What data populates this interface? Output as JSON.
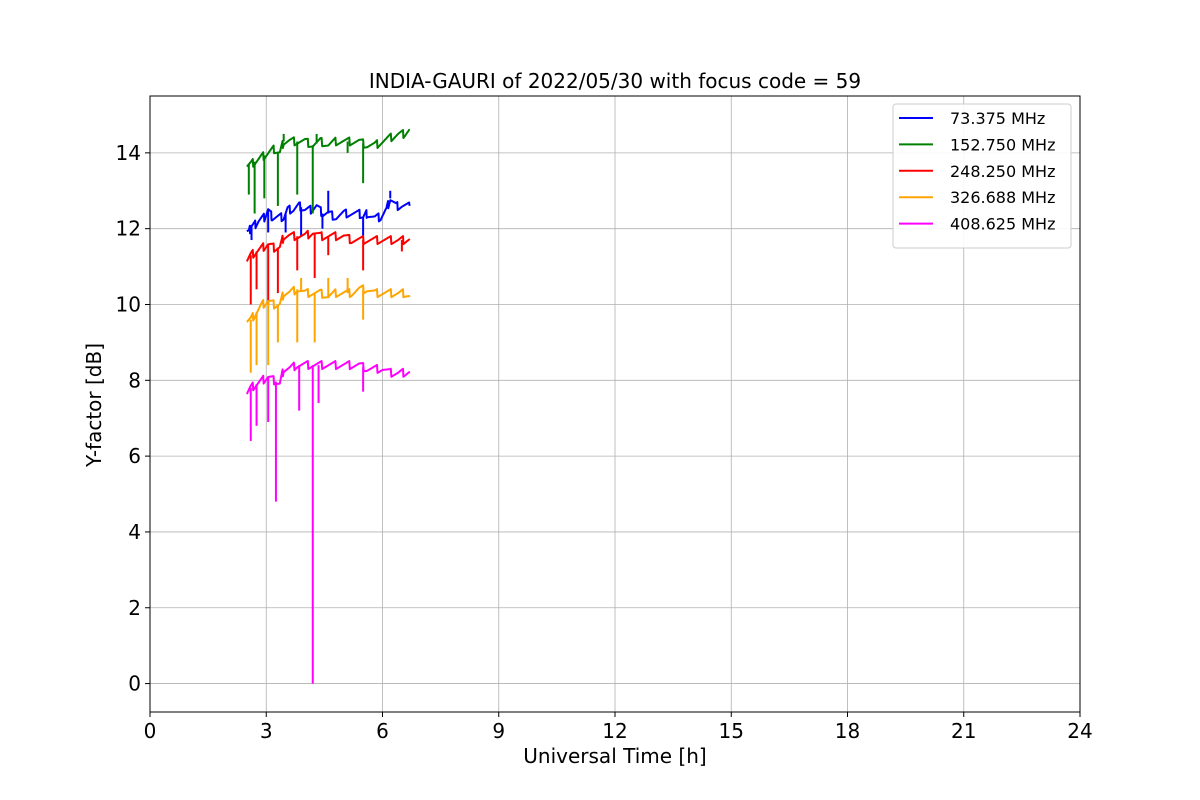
{
  "chart_data": {
    "type": "line",
    "title": "INDIA-GAURI of 2022/05/30 with focus code = 59",
    "xlabel": "Universal Time [h]",
    "ylabel": "Y-factor [dB]",
    "xlim": [
      0,
      24
    ],
    "ylim": [
      -0.75,
      15.5
    ],
    "x_ticks": [
      0,
      3,
      6,
      9,
      12,
      15,
      18,
      21,
      24
    ],
    "x_tick_labels": [
      "0",
      "3",
      "6",
      "9",
      "12",
      "15",
      "18",
      "21",
      "24"
    ],
    "y_ticks": [
      0,
      2,
      4,
      6,
      8,
      10,
      12,
      14
    ],
    "y_tick_labels": [
      "0",
      "2",
      "4",
      "6",
      "8",
      "10",
      "12",
      "14"
    ],
    "grid": true,
    "legend_position": "top-right",
    "series": [
      {
        "name": "  73.375 MHz",
        "color": "#0000ff",
        "points": [
          [
            2.5,
            12.0
          ],
          [
            2.55,
            11.9
          ],
          [
            2.62,
            12.1
          ],
          [
            2.7,
            12.1
          ],
          [
            2.8,
            12.2
          ],
          [
            2.95,
            12.3
          ],
          [
            3.05,
            12.5
          ],
          [
            3.15,
            12.3
          ],
          [
            3.3,
            12.3
          ],
          [
            3.45,
            12.3
          ],
          [
            3.55,
            12.5
          ],
          [
            3.7,
            12.5
          ],
          [
            3.85,
            12.6
          ],
          [
            4.0,
            12.5
          ],
          [
            4.15,
            12.5
          ],
          [
            4.3,
            12.6
          ],
          [
            4.45,
            12.4
          ],
          [
            4.6,
            12.4
          ],
          [
            4.8,
            12.3
          ],
          [
            5.0,
            12.4
          ],
          [
            5.2,
            12.4
          ],
          [
            5.4,
            12.4
          ],
          [
            5.5,
            12.3
          ],
          [
            5.6,
            12.4
          ],
          [
            5.8,
            12.3
          ],
          [
            5.95,
            12.3
          ],
          [
            6.1,
            12.5
          ],
          [
            6.2,
            12.8
          ],
          [
            6.35,
            12.6
          ],
          [
            6.5,
            12.6
          ],
          [
            6.7,
            12.6
          ]
        ],
        "dips": [
          [
            2.62,
            11.7
          ],
          [
            3.05,
            11.9
          ],
          [
            3.5,
            11.9
          ],
          [
            3.9,
            11.8
          ],
          [
            4.45,
            12.0
          ],
          [
            4.6,
            13.0
          ],
          [
            5.5,
            11.8
          ],
          [
            6.2,
            13.0
          ]
        ]
      },
      {
        "name": "152.750 MHz",
        "color": "#008000",
        "points": [
          [
            2.5,
            13.7
          ],
          [
            2.6,
            13.7
          ],
          [
            2.75,
            13.8
          ],
          [
            2.9,
            13.9
          ],
          [
            3.05,
            14.0
          ],
          [
            3.2,
            14.1
          ],
          [
            3.35,
            14.0
          ],
          [
            3.45,
            14.3
          ],
          [
            3.6,
            14.3
          ],
          [
            3.8,
            14.3
          ],
          [
            4.0,
            14.3
          ],
          [
            4.2,
            14.2
          ],
          [
            4.4,
            14.3
          ],
          [
            4.6,
            14.2
          ],
          [
            4.8,
            14.3
          ],
          [
            5.0,
            14.3
          ],
          [
            5.2,
            14.3
          ],
          [
            5.4,
            14.3
          ],
          [
            5.6,
            14.2
          ],
          [
            5.8,
            14.2
          ],
          [
            6.0,
            14.3
          ],
          [
            6.2,
            14.4
          ],
          [
            6.4,
            14.5
          ],
          [
            6.55,
            14.5
          ],
          [
            6.7,
            14.6
          ]
        ],
        "dips": [
          [
            2.55,
            12.9
          ],
          [
            2.7,
            12.4
          ],
          [
            2.95,
            12.8
          ],
          [
            3.3,
            12.6
          ],
          [
            3.45,
            14.5
          ],
          [
            3.8,
            12.9
          ],
          [
            4.2,
            12.4
          ],
          [
            4.3,
            14.5
          ],
          [
            5.1,
            14.0
          ],
          [
            5.5,
            13.2
          ]
        ]
      },
      {
        "name": "248.250 MHz",
        "color": "#ff0000",
        "points": [
          [
            2.5,
            11.2
          ],
          [
            2.6,
            11.3
          ],
          [
            2.75,
            11.4
          ],
          [
            2.9,
            11.5
          ],
          [
            3.05,
            11.6
          ],
          [
            3.2,
            11.5
          ],
          [
            3.35,
            11.5
          ],
          [
            3.45,
            11.8
          ],
          [
            3.6,
            11.8
          ],
          [
            3.8,
            11.8
          ],
          [
            4.0,
            11.8
          ],
          [
            4.2,
            11.9
          ],
          [
            4.4,
            11.8
          ],
          [
            4.6,
            11.8
          ],
          [
            4.8,
            11.8
          ],
          [
            5.0,
            11.8
          ],
          [
            5.2,
            11.7
          ],
          [
            5.4,
            11.7
          ],
          [
            5.6,
            11.7
          ],
          [
            5.8,
            11.7
          ],
          [
            6.0,
            11.7
          ],
          [
            6.2,
            11.7
          ],
          [
            6.4,
            11.7
          ],
          [
            6.55,
            11.7
          ],
          [
            6.7,
            11.7
          ]
        ],
        "dips": [
          [
            2.6,
            10.0
          ],
          [
            2.75,
            10.4
          ],
          [
            3.05,
            10.0
          ],
          [
            3.3,
            10.3
          ],
          [
            3.8,
            10.9
          ],
          [
            4.25,
            10.7
          ],
          [
            4.6,
            11.3
          ],
          [
            5.5,
            10.9
          ],
          [
            6.5,
            11.4
          ]
        ]
      },
      {
        "name": "326.688 MHz",
        "color": "#ffa500",
        "points": [
          [
            2.5,
            9.6
          ],
          [
            2.6,
            9.6
          ],
          [
            2.75,
            9.8
          ],
          [
            2.9,
            10.0
          ],
          [
            3.05,
            10.1
          ],
          [
            3.2,
            10.0
          ],
          [
            3.35,
            10.0
          ],
          [
            3.45,
            10.3
          ],
          [
            3.6,
            10.3
          ],
          [
            3.8,
            10.4
          ],
          [
            4.0,
            10.3
          ],
          [
            4.2,
            10.3
          ],
          [
            4.4,
            10.3
          ],
          [
            4.6,
            10.2
          ],
          [
            4.8,
            10.3
          ],
          [
            5.0,
            10.3
          ],
          [
            5.2,
            10.3
          ],
          [
            5.4,
            10.4
          ],
          [
            5.6,
            10.4
          ],
          [
            5.8,
            10.3
          ],
          [
            6.0,
            10.3
          ],
          [
            6.2,
            10.3
          ],
          [
            6.4,
            10.3
          ],
          [
            6.55,
            10.3
          ],
          [
            6.7,
            10.2
          ]
        ],
        "dips": [
          [
            2.6,
            8.2
          ],
          [
            2.75,
            8.4
          ],
          [
            3.05,
            8.4
          ],
          [
            3.3,
            9.0
          ],
          [
            3.8,
            9.0
          ],
          [
            3.9,
            10.7
          ],
          [
            4.25,
            9.0
          ],
          [
            4.6,
            10.7
          ],
          [
            5.1,
            10.7
          ],
          [
            5.5,
            9.6
          ]
        ]
      },
      {
        "name": "408.625 MHz",
        "color": "#ff00ff",
        "points": [
          [
            2.5,
            7.7
          ],
          [
            2.6,
            7.8
          ],
          [
            2.75,
            7.9
          ],
          [
            2.9,
            8.0
          ],
          [
            3.05,
            8.1
          ],
          [
            3.2,
            8.0
          ],
          [
            3.35,
            7.9
          ],
          [
            3.45,
            8.3
          ],
          [
            3.6,
            8.3
          ],
          [
            3.8,
            8.4
          ],
          [
            4.0,
            8.4
          ],
          [
            4.2,
            8.4
          ],
          [
            4.4,
            8.4
          ],
          [
            4.6,
            8.4
          ],
          [
            4.8,
            8.4
          ],
          [
            5.0,
            8.4
          ],
          [
            5.2,
            8.4
          ],
          [
            5.4,
            8.4
          ],
          [
            5.6,
            8.3
          ],
          [
            5.8,
            8.3
          ],
          [
            6.0,
            8.3
          ],
          [
            6.2,
            8.2
          ],
          [
            6.4,
            8.2
          ],
          [
            6.55,
            8.2
          ],
          [
            6.7,
            8.2
          ]
        ],
        "dips": [
          [
            2.6,
            6.4
          ],
          [
            2.75,
            6.8
          ],
          [
            3.05,
            6.9
          ],
          [
            3.25,
            4.8
          ],
          [
            3.85,
            7.2
          ],
          [
            4.2,
            0.0
          ],
          [
            4.35,
            7.4
          ],
          [
            5.5,
            7.7
          ]
        ]
      }
    ]
  }
}
